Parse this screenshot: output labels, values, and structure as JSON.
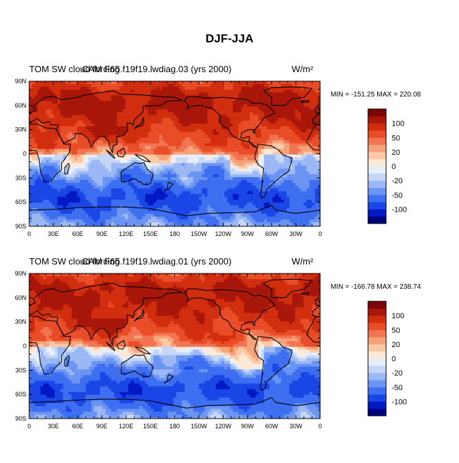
{
  "title": "DJF-JJA",
  "colors": [
    "#00007f",
    "#0019c4",
    "#1a46e6",
    "#3f6ff1",
    "#6b95f3",
    "#9bb8f4",
    "#c5d6f6",
    "#e6eefa",
    "#fde9d7",
    "#fbc9a6",
    "#f6a37a",
    "#f07550",
    "#e94d28",
    "#d02e0f",
    "#a8170a",
    "#7a0606"
  ],
  "chart_data": [
    {
      "type": "heatmap",
      "left_label": "TOM SW cloud forcing",
      "center_label": "CAM F65.f19f19.lwdiag.03 (yrs 2000)",
      "units": "W/m²",
      "stats": "MIN = -151.25 MAX = 220.08",
      "x_ticks": [
        "0",
        "30E",
        "60E",
        "90E",
        "120E",
        "150E",
        "180",
        "150W",
        "120W",
        "90W",
        "60W",
        "30W",
        "0"
      ],
      "y_ticks": [
        "90N",
        "60N",
        "30N",
        "0",
        "30S",
        "60S",
        "90S"
      ],
      "colorbar_labels": [
        "100",
        "50",
        "20",
        "0",
        "-20",
        "-50",
        "-100"
      ]
    },
    {
      "type": "heatmap",
      "left_label": "TOM SW cloud forcing",
      "center_label": "CAM F65.f19f19.lwdiag.01 (yrs 2000)",
      "units": "W/m²",
      "stats": "MIN = -166.78 MAX = 238.74",
      "x_ticks": [
        "0",
        "30E",
        "60E",
        "90E",
        "120E",
        "150E",
        "180",
        "150W",
        "120W",
        "90W",
        "60W",
        "30W",
        "0"
      ],
      "y_ticks": [
        "90N",
        "60N",
        "30N",
        "0",
        "30S",
        "60S",
        "90S"
      ],
      "colorbar_labels": [
        "100",
        "50",
        "20",
        "0",
        "-20",
        "-50",
        "-100"
      ]
    }
  ]
}
